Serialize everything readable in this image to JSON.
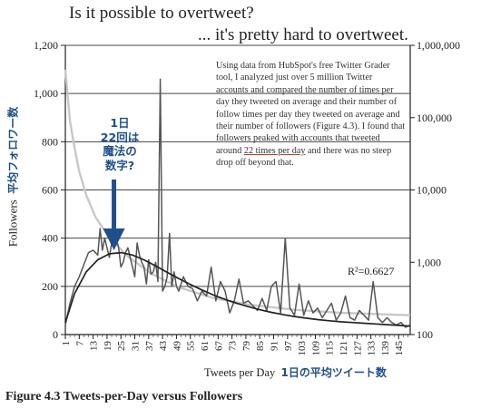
{
  "title": "Is it possible to overtweet?",
  "subtitle": "... it's pretty hard to overtweet.",
  "paragraph": {
    "before": "Using data from HubSpot's free Twitter Grader tool, I analyzed just over 5 million Twitter accounts and compared the number of times per day they tweeted on average and their number of follow times per day they tweeted on average and their number of followers (Figure 4.3). I found that followers peaked with accounts that tweeted around",
    "highlight": "22 times per day",
    "after": "and there was no steep drop off beyond that."
  },
  "y_axis_label": "Followers",
  "y_axis_label_jp": "平均フォロワー数",
  "x_axis_label": "Tweets per Day",
  "x_axis_label_jp": "1日の平均ツイート数",
  "callout_lines": [
    "1日",
    "22回は",
    "魔法の",
    "数字?"
  ],
  "r_squared": "R²=0.6627",
  "caption": "Figure 4.3    Tweets-per-Day versus Followers",
  "colors": {
    "accent": "#1f4e8c",
    "data": "#555555",
    "trend": "#222222",
    "secondary": "#c8c8c8",
    "underline": "#c0392b"
  },
  "chart_data": {
    "type": "line",
    "x_ticks": [
      "1",
      "7",
      "13",
      "19",
      "25",
      "31",
      "37",
      "43",
      "49",
      "55",
      "61",
      "67",
      "73",
      "79",
      "85",
      "91",
      "97",
      "103",
      "109",
      "115",
      "121",
      "127",
      "133",
      "139",
      "145"
    ],
    "xlim": [
      1,
      150
    ],
    "ylim": [
      0,
      1200
    ],
    "y_ticks": [
      "0",
      "200",
      "400",
      "600",
      "800",
      "1,000",
      "1,200"
    ],
    "y2_scale": "log",
    "y2lim": [
      100,
      1000000
    ],
    "y2_ticks": [
      "100",
      "1,000",
      "10,000",
      "100,000",
      "1,000,000"
    ],
    "series": [
      {
        "role": "followers",
        "x": [
          1,
          3,
          5,
          7,
          9,
          11,
          13,
          15,
          16,
          17,
          18,
          19,
          20,
          21,
          22,
          23,
          24,
          25,
          26,
          27,
          28,
          29,
          30,
          31,
          32,
          33,
          34,
          35,
          36,
          37,
          38,
          39,
          40,
          41,
          42,
          43,
          44,
          45,
          46,
          47,
          48,
          49,
          50,
          52,
          54,
          56,
          58,
          60,
          62,
          64,
          66,
          68,
          70,
          72,
          74,
          76,
          78,
          80,
          82,
          84,
          86,
          88,
          90,
          92,
          94,
          96,
          98,
          100,
          102,
          104,
          106,
          108,
          110,
          112,
          114,
          116,
          118,
          120,
          122,
          124,
          126,
          128,
          130,
          132,
          134,
          136,
          138,
          140,
          142,
          144,
          146,
          148,
          150
        ],
        "y": [
          40,
          130,
          200,
          240,
          290,
          340,
          350,
          330,
          440,
          350,
          400,
          360,
          320,
          380,
          420,
          400,
          360,
          280,
          300,
          340,
          360,
          320,
          280,
          240,
          380,
          330,
          300,
          280,
          210,
          310,
          250,
          260,
          300,
          220,
          1060,
          180,
          200,
          240,
          420,
          200,
          260,
          200,
          180,
          240,
          200,
          190,
          140,
          180,
          160,
          280,
          140,
          220,
          180,
          90,
          140,
          230,
          130,
          140,
          120,
          100,
          150,
          100,
          200,
          220,
          90,
          400,
          110,
          80,
          210,
          80,
          140,
          90,
          110,
          70,
          100,
          130,
          60,
          90,
          160,
          70,
          60,
          100,
          80,
          60,
          220,
          70,
          50,
          70,
          50,
          40,
          50,
          30,
          40
        ]
      },
      {
        "role": "trend",
        "x": [
          1,
          5,
          10,
          15,
          20,
          25,
          30,
          35,
          40,
          45,
          50,
          55,
          60,
          65,
          70,
          75,
          80,
          85,
          90,
          95,
          100,
          105,
          110,
          115,
          120,
          125,
          130,
          135,
          140,
          145,
          150
        ],
        "y": [
          50,
          170,
          260,
          310,
          335,
          340,
          330,
          310,
          285,
          258,
          232,
          208,
          185,
          164,
          146,
          130,
          116,
          103,
          92,
          83,
          75,
          68,
          62,
          57,
          53,
          50,
          47,
          44,
          41,
          38,
          35
        ]
      },
      {
        "role": "secondary",
        "x": [
          1,
          2,
          3,
          5,
          7,
          10,
          14,
          20,
          28,
          38,
          50,
          65,
          80,
          100,
          120,
          140,
          150
        ],
        "y2": [
          460000,
          200000,
          90000,
          38000,
          18000,
          8500,
          4200,
          2200,
          1200,
          700,
          450,
          320,
          260,
          220,
          200,
          190,
          185
        ]
      }
    ]
  }
}
